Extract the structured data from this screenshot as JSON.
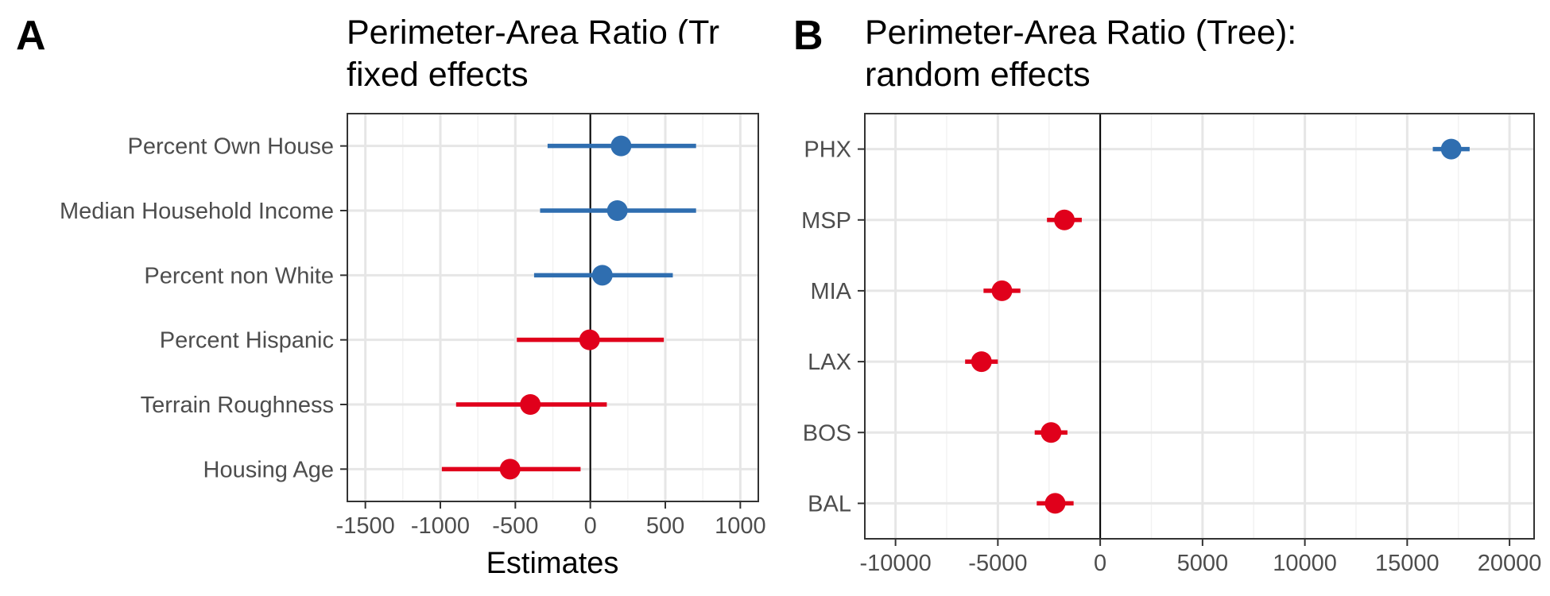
{
  "colors": {
    "positive": "#2f6eb0",
    "negative": "#e0001b",
    "grid_major": "#e6e6e6",
    "grid_minor": "#f2f2f2",
    "panel_border": "#333333",
    "tick_text": "#4d4d4d"
  },
  "chart_data": [
    {
      "type": "forest",
      "panel_label": "A",
      "title_lines": [
        "Perimeter-Area Ratio (Tr",
        "fixed effects"
      ],
      "xlabel": "Estimates",
      "ylabel": "",
      "xlim": [
        -1620,
        1120
      ],
      "xticks": [
        "-1500",
        "-1000",
        "-500",
        "0",
        "500",
        "1000"
      ],
      "xtick_values": [
        -1500,
        -1000,
        -500,
        0,
        500,
        1000
      ],
      "grid": true,
      "reference_line": 0,
      "terms": [
        {
          "label": "Percent Own House",
          "estimate": 205,
          "ci_low": -285,
          "ci_high": 705,
          "sign": "positive"
        },
        {
          "label": "Median Household Income",
          "estimate": 180,
          "ci_low": -335,
          "ci_high": 705,
          "sign": "positive"
        },
        {
          "label": "Percent non White",
          "estimate": 80,
          "ci_low": -375,
          "ci_high": 550,
          "sign": "positive"
        },
        {
          "label": "Percent Hispanic",
          "estimate": -5,
          "ci_low": -490,
          "ci_high": 490,
          "sign": "negative"
        },
        {
          "label": "Terrain Roughness",
          "estimate": -400,
          "ci_low": -895,
          "ci_high": 110,
          "sign": "negative"
        },
        {
          "label": "Housing Age",
          "estimate": -535,
          "ci_low": -990,
          "ci_high": -65,
          "sign": "negative"
        }
      ]
    },
    {
      "type": "forest",
      "panel_label": "B",
      "title_lines": [
        "Perimeter-Area Ratio (Tree):",
        "random effects"
      ],
      "xlabel": "",
      "ylabel": "",
      "xlim": [
        -11500,
        21200
      ],
      "xticks": [
        "-10000",
        "-5000",
        "0",
        "5000",
        "10000",
        "15000",
        "20000"
      ],
      "xtick_values": [
        -10000,
        -5000,
        0,
        5000,
        10000,
        15000,
        20000
      ],
      "grid": true,
      "reference_line": 0,
      "terms": [
        {
          "label": "PHX",
          "estimate": 17150,
          "ci_low": 16250,
          "ci_high": 18050,
          "sign": "positive"
        },
        {
          "label": "MSP",
          "estimate": -1750,
          "ci_low": -2600,
          "ci_high": -900,
          "sign": "negative"
        },
        {
          "label": "MIA",
          "estimate": -4800,
          "ci_low": -5700,
          "ci_high": -3900,
          "sign": "negative"
        },
        {
          "label": "LAX",
          "estimate": -5800,
          "ci_low": -6600,
          "ci_high": -5000,
          "sign": "negative"
        },
        {
          "label": "BOS",
          "estimate": -2400,
          "ci_low": -3200,
          "ci_high": -1600,
          "sign": "negative"
        },
        {
          "label": "BAL",
          "estimate": -2200,
          "ci_low": -3100,
          "ci_high": -1300,
          "sign": "negative"
        }
      ]
    }
  ]
}
